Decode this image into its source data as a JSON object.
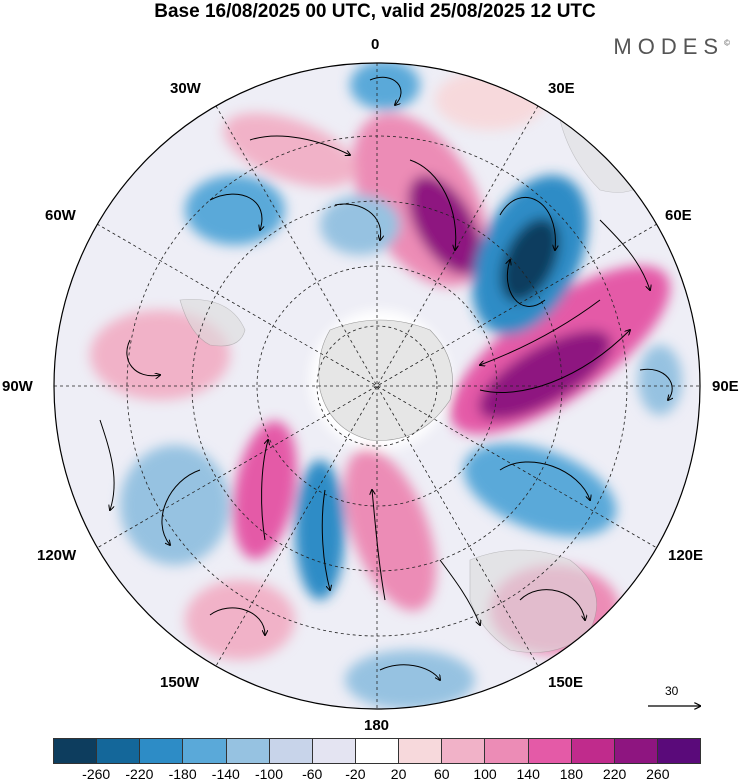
{
  "title": "Base 16/08/2025 00 UTC, valid 25/08/2025 12 UTC",
  "brand": "MODES",
  "brand_mark": "©",
  "longitude_labels": {
    "l0": "0",
    "l30e": "30E",
    "l60e": "60E",
    "l90e": "90E",
    "l120e": "120E",
    "l150e": "150E",
    "l180": "180",
    "l150w": "150W",
    "l120w": "120W",
    "l90w": "90W",
    "l60w": "60W",
    "l30w": "30W"
  },
  "vector_reference": "30",
  "legend": {
    "colors": [
      "#0d3d5e",
      "#14679a",
      "#2d8cc6",
      "#5aa9d9",
      "#96c2e1",
      "#c8d4ea",
      "#e4e4f2",
      "#ffffff",
      "#f7d9dc",
      "#f1b2c8",
      "#ec8cb6",
      "#e45aa7",
      "#c02b8c",
      "#8e1580",
      "#5a0a7a"
    ],
    "ticks": [
      "-260",
      "-220",
      "-180",
      "-140",
      "-100",
      "-60",
      "-20",
      "20",
      "60",
      "100",
      "140",
      "180",
      "220",
      "260"
    ]
  }
}
